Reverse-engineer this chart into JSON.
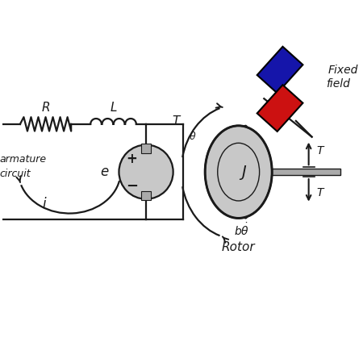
{
  "bg_color": "#ffffff",
  "black": "#1a1a1a",
  "gray_light": "#c8c8c8",
  "gray_mid": "#aaaaaa",
  "gray_dark": "#555555",
  "magnet_blue": "#1515aa",
  "magnet_red": "#cc1111",
  "lw_main": 1.6,
  "lw_thin": 1.1,
  "figw": 4.5,
  "figh": 4.5,
  "dpi": 100,
  "xlim": [
    0,
    11
  ],
  "ylim": [
    0,
    10
  ]
}
